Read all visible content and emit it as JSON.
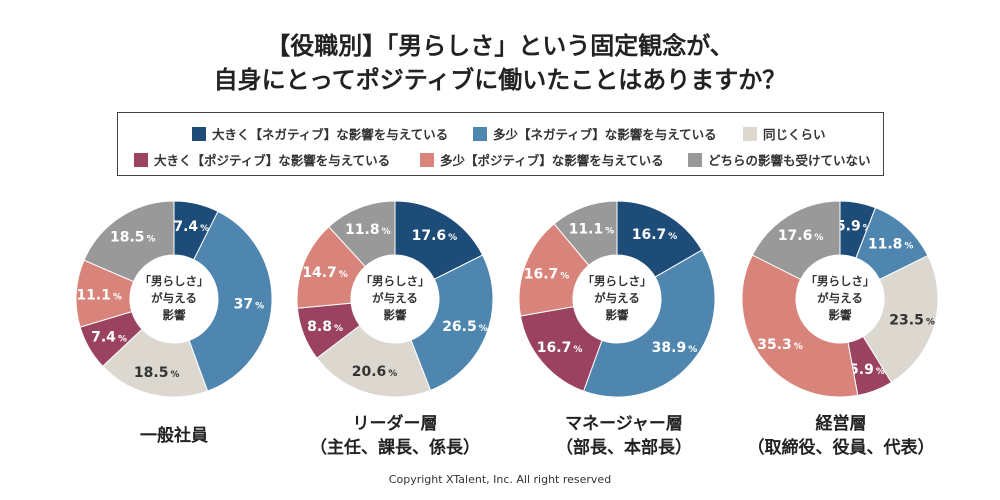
{
  "title": {
    "line1": "【役職別】「男らしさ」という固定観念が、",
    "line2": "自身にとってポジティブに働いたことはありますか？"
  },
  "legend": [
    {
      "label": "大きく【ネガティブ】な影響を与えている",
      "color": "#1e4c78"
    },
    {
      "label": "多少【ネガティブ】な影響を与えている",
      "color": "#4f86b0"
    },
    {
      "label": "同じくらい",
      "color": "#dcd8cf"
    },
    {
      "label": "大きく【ポジティブ】な影響を与えている",
      "color": "#9a4260"
    },
    {
      "label": "多少【ポジティブ】な影響を与えている",
      "color": "#d9847a"
    },
    {
      "label": "どちらの影響も受けていない",
      "color": "#999999"
    }
  ],
  "center_label": [
    "「男らしさ」",
    "が与える",
    "影響"
  ],
  "chart_data": [
    {
      "type": "pie",
      "title_line1": "一般社員",
      "title_line2": "",
      "categories": [
        "大きく【ネガティブ】な影響を与えている",
        "多少【ネガティブ】な影響を与えている",
        "同じくらい",
        "大きく【ポジティブ】な影響を与えている",
        "多少【ポジティブ】な影響を与えている",
        "どちらの影響も受けていない"
      ],
      "values": [
        7.4,
        37,
        18.5,
        7.4,
        11.1,
        18.5
      ]
    },
    {
      "type": "pie",
      "title_line1": "リーダー層",
      "title_line2": "（主任、課長、係長）",
      "categories": [
        "大きく【ネガティブ】な影響を与えている",
        "多少【ネガティブ】な影響を与えている",
        "同じくらい",
        "大きく【ポジティブ】な影響を与えている",
        "多少【ポジティブ】な影響を与えている",
        "どちらの影響も受けていない"
      ],
      "values": [
        17.6,
        26.5,
        20.6,
        8.8,
        14.7,
        11.8
      ]
    },
    {
      "type": "pie",
      "title_line1": "マネージャー層",
      "title_line2": "（部長、本部長）",
      "categories": [
        "大きく【ネガティブ】な影響を与えている",
        "多少【ネガティブ】な影響を与えている",
        "同じくらい",
        "大きく【ポジティブ】な影響を与えている",
        "多少【ポジティブ】な影響を与えている",
        "どちらの影響も受けていない"
      ],
      "values": [
        16.7,
        38.9,
        0,
        16.7,
        16.7,
        11.1
      ]
    },
    {
      "type": "pie",
      "title_line1": "経営層",
      "title_line2": "（取締役、役員、代表）",
      "categories": [
        "大きく【ネガティブ】な影響を与えている",
        "多少【ネガティブ】な影響を与えている",
        "同じくらい",
        "大きく【ポジティブ】な影響を与えている",
        "多少【ポジティブ】な影響を与えている",
        "どちらの影響も受けていない"
      ],
      "values": [
        5.9,
        11.8,
        23.5,
        5.9,
        35.3,
        17.6
      ]
    }
  ],
  "copyright": "Copyright XTalent, Inc. All right reserved"
}
